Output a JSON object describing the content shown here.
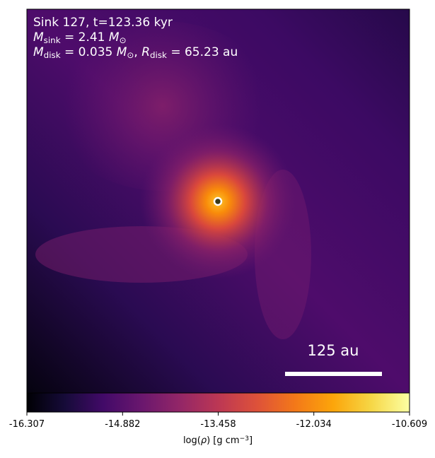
{
  "chart_data": {
    "type": "heatmap",
    "annotations": [
      [
        {
          "text": "Sink 127, t=123.36 kyr"
        }
      ],
      [
        {
          "text": "M",
          "italic": true
        },
        {
          "text": "sink",
          "sub": true
        },
        {
          "text": " = 2.41 "
        },
        {
          "text": "M",
          "italic": true
        },
        {
          "text": "⊙",
          "sub": true
        }
      ],
      [
        {
          "text": "M",
          "italic": true
        },
        {
          "text": "disk",
          "sub": true
        },
        {
          "text": " = 0.035 "
        },
        {
          "text": "M",
          "italic": true
        },
        {
          "text": "⊙",
          "sub": true
        },
        {
          "text": ", "
        },
        {
          "text": "R",
          "italic": true
        },
        {
          "text": "disk",
          "sub": true
        },
        {
          "text": " = 65.23 au"
        }
      ]
    ],
    "scale_bar_label": "125 au",
    "colorbar": {
      "label": [
        {
          "text": "log("
        },
        {
          "text": "ρ",
          "italic": true
        },
        {
          "text": ") [g cm"
        },
        {
          "text": "−3",
          "sup": true
        },
        {
          "text": "]"
        }
      ],
      "lim": [
        -16.307,
        -10.609
      ],
      "ticks": [
        -16.307,
        -14.882,
        -13.458,
        -12.034,
        -10.609
      ],
      "colormap": "inferno"
    }
  }
}
